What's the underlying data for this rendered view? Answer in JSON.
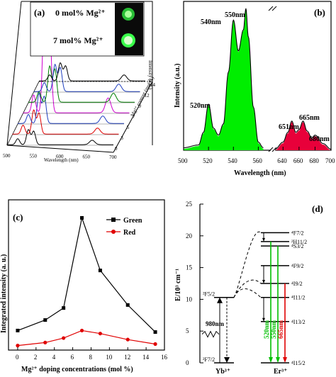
{
  "panels": {
    "a": {
      "label": "(a)",
      "legend_top": "0 mol% Mg²⁺",
      "legend_bottom": "7 mol% Mg²⁺",
      "xlabel": "Wavelength (nm)",
      "ylabel": "Intensity (a.u.)",
      "zlabel": "Mg²⁺ content (mol %)",
      "x_ticks": [
        "500",
        "550",
        "600",
        "650",
        "700"
      ],
      "z_ticks": [
        "0",
        "3",
        "5",
        "7",
        "9",
        "12",
        "14"
      ],
      "colors": [
        "#000000",
        "#e00000",
        "#1f3fbf",
        "#d000d0",
        "#007f00",
        "#1f3fbf",
        "#000000"
      ],
      "glow_color": "#39ff4a"
    },
    "b": {
      "label": "(b)",
      "xlabel": "Wavelength (nm)",
      "ylabel": "Intensity (a.u.)",
      "x_ticks": [
        "500",
        "520",
        "540",
        "560",
        "640",
        "660",
        "680",
        "700"
      ],
      "peaks": [
        "520nm",
        "540nm",
        "550nm",
        "651nm",
        "665nm",
        "680nm"
      ],
      "green_color": "#00ee00",
      "red_color": "#e8003a"
    },
    "c": {
      "label": "(c)",
      "xlabel": "Mg²⁺ doping concentrations (mol %)",
      "ylabel": "Integrated intensity (a. u.)",
      "x_ticks": [
        "0",
        "2",
        "4",
        "6",
        "8",
        "10",
        "12",
        "14",
        "16"
      ],
      "legend": [
        "Green",
        "Red"
      ]
    },
    "d": {
      "label": "(d)",
      "ylabel": "E/10³ cm⁻¹",
      "y_ticks": [
        "0",
        "5",
        "10",
        "15",
        "20",
        "25"
      ],
      "excitation": "980nm",
      "ion_left": "Yb³⁺",
      "ion_right": "Er³⁺",
      "yb_levels": [
        "²F5/2",
        "²F7/2"
      ],
      "er_levels": [
        "⁴F7/2",
        "²H11/2",
        "⁴S3/2",
        "⁴F9/2",
        "⁴I9/2",
        "⁴I11/2",
        "⁴I13/2",
        "⁴I15/2"
      ],
      "emissions": [
        "520nm",
        "550nm",
        "665nm"
      ]
    }
  },
  "chart_data": [
    {
      "type": "line",
      "panel": "a",
      "x": [
        500,
        700
      ],
      "xlim": [
        500,
        700
      ],
      "series": [
        {
          "z": 0,
          "peaks": [
            [
              520,
              0.2
            ],
            [
              540,
              0.5
            ],
            [
              550,
              0.45
            ],
            [
              660,
              0.15
            ]
          ]
        },
        {
          "z": 3,
          "peaks": [
            [
              520,
              0.3
            ],
            [
              540,
              0.8
            ],
            [
              550,
              0.7
            ],
            [
              660,
              0.2
            ]
          ]
        },
        {
          "z": 5,
          "peaks": [
            [
              520,
              0.3
            ],
            [
              540,
              1.0
            ],
            [
              550,
              0.9
            ],
            [
              660,
              0.25
            ]
          ]
        },
        {
          "z": 7,
          "peaks": [
            [
              520,
              0.6
            ],
            [
              540,
              3.2
            ],
            [
              550,
              2.8
            ],
            [
              660,
              0.5
            ]
          ]
        },
        {
          "z": 9,
          "peaks": [
            [
              520,
              0.35
            ],
            [
              540,
              1.2
            ],
            [
              550,
              1.1
            ],
            [
              660,
              0.3
            ]
          ]
        },
        {
          "z": 12,
          "peaks": [
            [
              520,
              0.3
            ],
            [
              540,
              0.9
            ],
            [
              550,
              0.8
            ],
            [
              660,
              0.25
            ]
          ]
        },
        {
          "z": 14,
          "peaks": [
            [
              520,
              0.2
            ],
            [
              540,
              0.6
            ],
            [
              550,
              0.5
            ],
            [
              660,
              0.2
            ]
          ]
        }
      ]
    },
    {
      "type": "area",
      "panel": "b",
      "xlabel": "Wavelength (nm)",
      "ylabel": "Intensity (a.u.)",
      "series": [
        {
          "name": "green",
          "x": [
            500,
            512,
            516,
            520,
            524,
            528,
            532,
            536,
            540,
            544,
            548,
            550,
            552,
            556,
            560,
            564
          ],
          "values": [
            0.01,
            0.03,
            0.12,
            0.32,
            0.15,
            0.1,
            0.18,
            0.55,
            0.92,
            0.7,
            0.85,
            1.0,
            0.8,
            0.3,
            0.05,
            0.01
          ]
        },
        {
          "name": "red",
          "x": [
            630,
            640,
            646,
            651,
            656,
            660,
            665,
            670,
            676,
            680,
            690,
            700
          ],
          "values": [
            0.0,
            0.05,
            0.12,
            0.2,
            0.12,
            0.14,
            0.2,
            0.13,
            0.08,
            0.1,
            0.04,
            0.0
          ]
        }
      ]
    },
    {
      "type": "line",
      "panel": "c",
      "xlabel": "Mg²⁺ doping concentrations (mol %)",
      "ylabel": "Integrated intensity (a. u.)",
      "xlim": [
        -1,
        16
      ],
      "ylim": [
        0,
        100
      ],
      "series": [
        {
          "name": "Green",
          "x": [
            0,
            3,
            5,
            7,
            9,
            12,
            15
          ],
          "values": [
            13,
            20,
            28,
            88,
            53,
            30,
            12
          ]
        },
        {
          "name": "Red",
          "x": [
            0,
            3,
            5,
            7,
            9,
            12,
            15
          ],
          "values": [
            3,
            5,
            8,
            13,
            11,
            7,
            4
          ]
        }
      ]
    },
    {
      "type": "diagram",
      "panel": "d",
      "ylim": [
        0,
        25
      ],
      "yb_levels": [
        0,
        10.3
      ],
      "er_levels": [
        0,
        6.5,
        10.3,
        12.5,
        15.3,
        18.4,
        19.1,
        20.5
      ]
    }
  ]
}
